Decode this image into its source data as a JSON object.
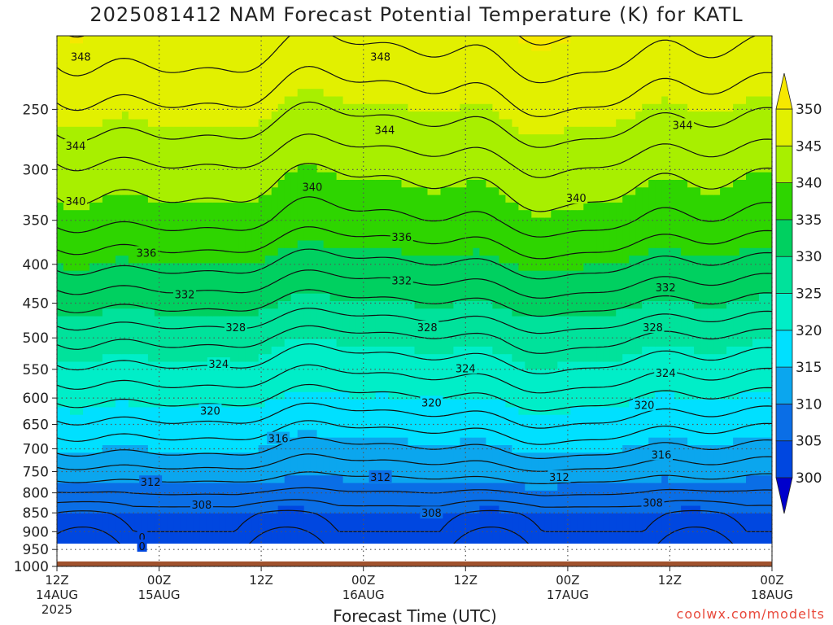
{
  "chart_data": {
    "type": "heatmap",
    "title": "2025081412 NAM Forecast Potential Temperature (K) for KATL",
    "xlabel": "Forecast Time (UTC)",
    "ylabel": "",
    "y_scale": "log-pressure",
    "y_inverted": true,
    "ylim": [
      1000,
      200
    ],
    "y_ticks": [
      "250",
      "300",
      "350",
      "400",
      "450",
      "500",
      "550",
      "600",
      "650",
      "700",
      "750",
      "800",
      "850",
      "900",
      "950",
      "1000"
    ],
    "y_tick_values": [
      250,
      300,
      350,
      400,
      450,
      500,
      550,
      600,
      650,
      700,
      750,
      800,
      850,
      900,
      950,
      1000
    ],
    "x_ticks": [
      {
        "hour": 0,
        "label": "12Z",
        "sub": "14AUG",
        "sub2": "2025"
      },
      {
        "hour": 12,
        "label": "00Z",
        "sub": "15AUG",
        "sub2": ""
      },
      {
        "hour": 24,
        "label": "12Z",
        "sub": "",
        "sub2": ""
      },
      {
        "hour": 36,
        "label": "00Z",
        "sub": "16AUG",
        "sub2": ""
      },
      {
        "hour": 48,
        "label": "12Z",
        "sub": "",
        "sub2": ""
      },
      {
        "hour": 60,
        "label": "00Z",
        "sub": "17AUG",
        "sub2": ""
      },
      {
        "hour": 72,
        "label": "12Z",
        "sub": "",
        "sub2": ""
      },
      {
        "hour": 84,
        "label": "00Z",
        "sub": "18AUG",
        "sub2": ""
      }
    ],
    "xlim": [
      0,
      84
    ],
    "grid": true,
    "colorbar": {
      "levels": [
        "300",
        "305",
        "310",
        "315",
        "320",
        "325",
        "330",
        "335",
        "340",
        "345",
        "350"
      ],
      "colors": [
        "#0000cc",
        "#0047e0",
        "#0a6ee6",
        "#0ba6ee",
        "#00e0ff",
        "#00eec8",
        "#00e29b",
        "#00d060",
        "#2ed500",
        "#a8ef00",
        "#e2f000",
        "#f6e800"
      ],
      "extend": "both"
    },
    "theta_profile": [
      {
        "p": 975,
        "theta": 301
      },
      {
        "p": 950,
        "theta": 303
      },
      {
        "p": 900,
        "theta": 304
      },
      {
        "p": 850,
        "theta": 305
      },
      {
        "p": 800,
        "theta": 308
      },
      {
        "p": 750,
        "theta": 311
      },
      {
        "p": 700,
        "theta": 314
      },
      {
        "p": 650,
        "theta": 317
      },
      {
        "p": 600,
        "theta": 320
      },
      {
        "p": 550,
        "theta": 323
      },
      {
        "p": 500,
        "theta": 326
      },
      {
        "p": 450,
        "theta": 330
      },
      {
        "p": 400,
        "theta": 334
      },
      {
        "p": 350,
        "theta": 338
      },
      {
        "p": 300,
        "theta": 341
      },
      {
        "p": 250,
        "theta": 345
      },
      {
        "p": 200,
        "theta": 349
      }
    ],
    "contour_levels": [
      298,
      300,
      302,
      304,
      306,
      308,
      310,
      312,
      314,
      316,
      318,
      320,
      322,
      324,
      326,
      328,
      330,
      332,
      334,
      336,
      338,
      340,
      342,
      344,
      346,
      348,
      350,
      352
    ],
    "contour_labels": [
      {
        "value": "348",
        "hour": 2.8,
        "p": 213
      },
      {
        "value": "348",
        "hour": 38,
        "p": 213
      },
      {
        "value": "344",
        "hour": 2.2,
        "p": 279
      },
      {
        "value": "344",
        "hour": 38.5,
        "p": 266
      },
      {
        "value": "344",
        "hour": 73.5,
        "p": 262
      },
      {
        "value": "340",
        "hour": 2.2,
        "p": 330
      },
      {
        "value": "340",
        "hour": 30,
        "p": 316
      },
      {
        "value": "340",
        "hour": 61,
        "p": 327
      },
      {
        "value": "336",
        "hour": 10.5,
        "p": 386
      },
      {
        "value": "336",
        "hour": 40.5,
        "p": 368
      },
      {
        "value": "332",
        "hour": 15,
        "p": 438
      },
      {
        "value": "332",
        "hour": 40.5,
        "p": 420
      },
      {
        "value": "332",
        "hour": 71.5,
        "p": 429
      },
      {
        "value": "328",
        "hour": 21,
        "p": 484
      },
      {
        "value": "328",
        "hour": 43.5,
        "p": 484
      },
      {
        "value": "328",
        "hour": 70,
        "p": 484
      },
      {
        "value": "324",
        "hour": 19,
        "p": 541
      },
      {
        "value": "324",
        "hour": 48,
        "p": 548
      },
      {
        "value": "324",
        "hour": 71.5,
        "p": 556
      },
      {
        "value": "320",
        "hour": 18,
        "p": 623
      },
      {
        "value": "320",
        "hour": 44,
        "p": 608
      },
      {
        "value": "320",
        "hour": 69,
        "p": 613
      },
      {
        "value": "316",
        "hour": 26,
        "p": 678
      },
      {
        "value": "316",
        "hour": 71,
        "p": 712
      },
      {
        "value": "312",
        "hour": 11,
        "p": 774
      },
      {
        "value": "312",
        "hour": 38,
        "p": 762
      },
      {
        "value": "312",
        "hour": 59,
        "p": 762
      },
      {
        "value": "308",
        "hour": 17,
        "p": 829
      },
      {
        "value": "308",
        "hour": 44,
        "p": 850
      },
      {
        "value": "308",
        "hour": 70,
        "p": 824
      },
      {
        "value": "0",
        "hour": 10,
        "p": 915
      },
      {
        "value": "0",
        "hour": 10,
        "p": 940
      }
    ],
    "terrain_pressure": 985
  },
  "credit": "coolwx.com/modelts",
  "colors": {
    "terrain": "#a0522d",
    "contour": "#111111",
    "gridline": "#555555",
    "frame": "#222222"
  }
}
